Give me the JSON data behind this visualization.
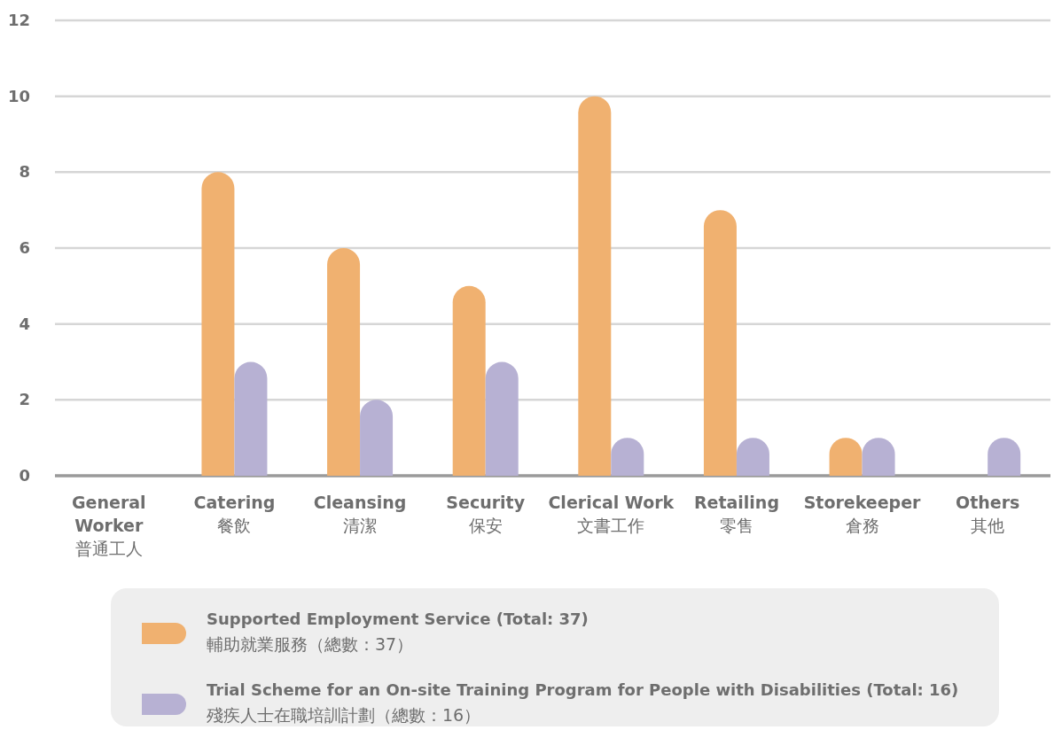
{
  "chart_data": {
    "type": "bar",
    "categories": [
      "General\nWorker\n普通工人",
      "Catering\n餐飲",
      "Cleansing\n清潔",
      "Security\n保安",
      "Clerical Work\n文書工作",
      "Retailing\n零售",
      "Storekeeper\n倉務",
      "Others\n其他"
    ],
    "series": [
      {
        "name": "Supported Employment Service (Total: 37)\n輔助就業服務（總數：37）",
        "color": "#f0b170",
        "values": [
          0,
          8,
          6,
          5,
          10,
          7,
          1,
          0
        ]
      },
      {
        "name": "Trial Scheme for an On-site Training Program for People with Disabilities (Total: 16)\n殘疾人士在職培訓計劃（總數：16）",
        "color": "#b7b1d3",
        "values": [
          0,
          3,
          2,
          3,
          1,
          1,
          1,
          1
        ]
      }
    ],
    "ylim": [
      0,
      12
    ],
    "yticks": [
      0,
      2,
      4,
      6,
      8,
      10,
      12
    ],
    "grid": "y",
    "legend": "bottom"
  }
}
